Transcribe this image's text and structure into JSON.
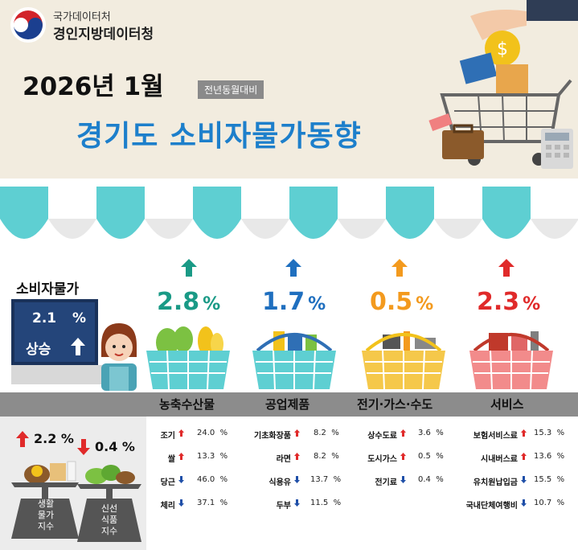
{
  "header": {
    "org_top": "국가데이터처",
    "org_bottom": "경인지방데이터청",
    "date_title": "2026년 1월",
    "comparison_badge": "전년동월대비",
    "main_title": "경기도 소비자물가동향"
  },
  "cpi": {
    "label": "소비자물가",
    "value": "2.1",
    "unit": "%",
    "status": "상승",
    "direction": "up"
  },
  "categories": [
    {
      "name": "농축수산물",
      "value": "2.8",
      "unit": "%",
      "direction": "up",
      "color": "#1a9a86",
      "arrow_color": "#1a9a86"
    },
    {
      "name": "공업제품",
      "value": "1.7",
      "unit": "%",
      "direction": "up",
      "color": "#1f6fbf",
      "arrow_color": "#1f6fbf"
    },
    {
      "name": "전기·가스·수도",
      "value": "0.5",
      "unit": "%",
      "direction": "up",
      "color": "#f39a1e",
      "arrow_color": "#f39a1e"
    },
    {
      "name": "서비스",
      "value": "2.3",
      "unit": "%",
      "direction": "up",
      "color": "#e02a2a",
      "arrow_color": "#e02a2a"
    }
  ],
  "indices": [
    {
      "label_lines": [
        "생활",
        "물가",
        "지수"
      ],
      "value": "2.2",
      "unit": "%",
      "direction": "up"
    },
    {
      "label_lines": [
        "신선",
        "식품",
        "지수"
      ],
      "value": "0.4",
      "unit": "%",
      "direction": "down"
    }
  ],
  "items": {
    "agri": [
      {
        "name": "조기",
        "value": "24.0",
        "unit": "%",
        "direction": "up"
      },
      {
        "name": "쌀",
        "value": "13.3",
        "unit": "%",
        "direction": "up"
      },
      {
        "name": "당근",
        "value": "46.0",
        "unit": "%",
        "direction": "down"
      },
      {
        "name": "체리",
        "value": "37.1",
        "unit": "%",
        "direction": "down"
      }
    ],
    "industrial": [
      {
        "name": "기초화장품",
        "value": "8.2",
        "unit": "%",
        "direction": "up"
      },
      {
        "name": "라면",
        "value": "8.2",
        "unit": "%",
        "direction": "up"
      },
      {
        "name": "식용유",
        "value": "13.7",
        "unit": "%",
        "direction": "down"
      },
      {
        "name": "두부",
        "value": "11.5",
        "unit": "%",
        "direction": "down"
      }
    ],
    "utilities": [
      {
        "name": "상수도료",
        "value": "3.6",
        "unit": "%",
        "direction": "up"
      },
      {
        "name": "도시가스",
        "value": "0.5",
        "unit": "%",
        "direction": "up"
      },
      {
        "name": "전기료",
        "value": "0.4",
        "unit": "%",
        "direction": "down"
      }
    ],
    "services": [
      {
        "name": "보험서비스료",
        "value": "15.3",
        "unit": "%",
        "direction": "up"
      },
      {
        "name": "시내버스료",
        "value": "13.6",
        "unit": "%",
        "direction": "up"
      },
      {
        "name": "유치원납입금",
        "value": "15.5",
        "unit": "%",
        "direction": "down"
      },
      {
        "name": "국내단체여행비",
        "value": "10.7",
        "unit": "%",
        "direction": "down"
      }
    ]
  },
  "colors": {
    "up": "#e02a2a",
    "down": "#1f4fa8",
    "title_blue": "#1d7fcb",
    "awning_teal": "#5ecfd2",
    "cpi_board": "#24457a"
  }
}
